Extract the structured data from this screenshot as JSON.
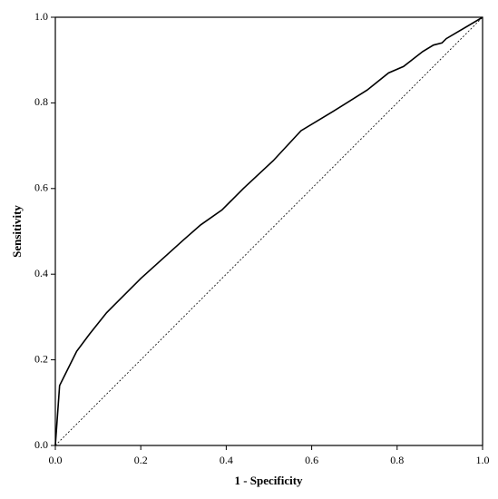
{
  "chart_data": {
    "type": "line",
    "x_label": "1 - Specificity",
    "y_label": "Sensitivity",
    "xlim": [
      0,
      1
    ],
    "ylim": [
      0,
      1
    ],
    "xticks": [
      {
        "value": 0,
        "label": "0.0"
      },
      0.2,
      0.4,
      0.6,
      0.8,
      {
        "value": 1,
        "label": "1.0"
      }
    ],
    "yticks": [
      {
        "value": 0,
        "label": "0.0"
      },
      0.2,
      0.4,
      0.6,
      0.8,
      {
        "value": 1,
        "label": "1.0"
      }
    ],
    "series": [
      {
        "color": "#000000",
        "dashed": false,
        "x": [
          0,
          0.01,
          0.02,
          0.05,
          0.08,
          0.12,
          0.2,
          0.3,
          0.34,
          0.39,
          0.44,
          0.51,
          0.575,
          0.65,
          0.73,
          0.78,
          0.815,
          0.86,
          0.885,
          0.905,
          0.915,
          1
        ],
        "values": [
          0,
          0.14,
          0.16,
          0.22,
          0.26,
          0.31,
          0.39,
          0.48,
          0.515,
          0.55,
          0.6,
          0.665,
          0.735,
          0.78,
          0.83,
          0.87,
          0.885,
          0.92,
          0.935,
          0.94,
          0.95,
          1
        ]
      },
      {
        "color": "#000000",
        "dashed": true,
        "x": [
          0,
          1
        ],
        "values": [
          0,
          1
        ]
      }
    ]
  }
}
